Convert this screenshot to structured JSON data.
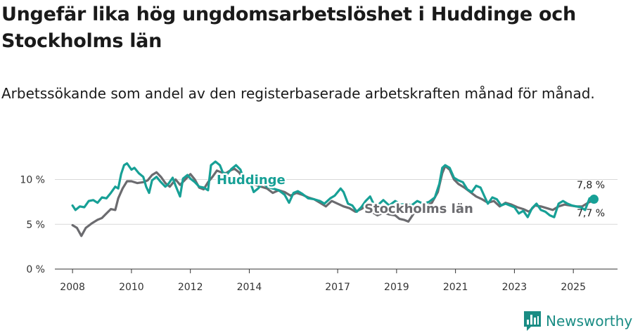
{
  "title": "Ungefär lika hög ungdomsarbetslöshet i Huddinge och Stockholms län",
  "subtitle": "Arbetssökande som andel av den registerbaserade arbetskraften månad för månad.",
  "brand": {
    "name": "Newsworthy",
    "color": "#1a8c84"
  },
  "colors": {
    "huddinge": "#17a096",
    "stockholm": "#6b6b6f",
    "grid": "#d9d9d9",
    "axis": "#333333"
  },
  "chart_data": {
    "type": "line",
    "title": "Ungefär lika hög ungdomsarbetslöshet i Huddinge och Stockholms län",
    "xlabel": "",
    "ylabel": "",
    "xlim": [
      2007.4,
      2026.5
    ],
    "ylim": [
      0,
      12
    ],
    "y_ticks": [
      0,
      5,
      10
    ],
    "y_tick_labels": [
      "0 %",
      "5 %",
      "10 %"
    ],
    "x_ticks": [
      2008,
      2010,
      2012,
      2014,
      2017,
      2019,
      2021,
      2023,
      2025
    ],
    "x_tick_labels": [
      "2008",
      "2010",
      "2012",
      "2014",
      "2017",
      "2019",
      "2021",
      "2023",
      "2025"
    ],
    "series": [
      {
        "name": "Huddinge",
        "color": "#17a096",
        "end_label": "7,8 %",
        "points": [
          [
            2008.0,
            7.1
          ],
          [
            2008.1,
            6.6
          ],
          [
            2008.25,
            7.0
          ],
          [
            2008.4,
            6.9
          ],
          [
            2008.55,
            7.6
          ],
          [
            2008.7,
            7.7
          ],
          [
            2008.85,
            7.4
          ],
          [
            2009.0,
            8.0
          ],
          [
            2009.15,
            7.9
          ],
          [
            2009.3,
            8.5
          ],
          [
            2009.45,
            9.2
          ],
          [
            2009.55,
            9.0
          ],
          [
            2009.65,
            10.6
          ],
          [
            2009.75,
            11.6
          ],
          [
            2009.85,
            11.8
          ],
          [
            2010.0,
            11.1
          ],
          [
            2010.1,
            11.3
          ],
          [
            2010.25,
            10.7
          ],
          [
            2010.4,
            10.3
          ],
          [
            2010.5,
            9.2
          ],
          [
            2010.6,
            8.5
          ],
          [
            2010.7,
            9.9
          ],
          [
            2010.85,
            10.3
          ],
          [
            2011.0,
            9.7
          ],
          [
            2011.15,
            9.2
          ],
          [
            2011.25,
            9.5
          ],
          [
            2011.4,
            10.2
          ],
          [
            2011.5,
            9.3
          ],
          [
            2011.65,
            8.1
          ],
          [
            2011.75,
            10.1
          ],
          [
            2011.9,
            10.5
          ],
          [
            2012.0,
            10.1
          ],
          [
            2012.15,
            9.7
          ],
          [
            2012.3,
            9.2
          ],
          [
            2012.45,
            9.1
          ],
          [
            2012.6,
            8.8
          ],
          [
            2012.7,
            11.6
          ],
          [
            2012.85,
            12.0
          ],
          [
            2013.0,
            11.6
          ],
          [
            2013.1,
            10.8
          ],
          [
            2013.25,
            10.6
          ],
          [
            2013.4,
            11.2
          ],
          [
            2013.55,
            11.6
          ],
          [
            2013.7,
            11.1
          ],
          [
            2013.85,
            9.6
          ],
          [
            2014.0,
            10.0
          ],
          [
            2014.15,
            8.6
          ],
          [
            2014.3,
            9.0
          ],
          [
            2014.45,
            9.6
          ],
          [
            2014.6,
            9.2
          ],
          [
            2014.8,
            9.0
          ],
          [
            2015.0,
            8.8
          ],
          [
            2015.2,
            8.3
          ],
          [
            2015.35,
            7.4
          ],
          [
            2015.5,
            8.5
          ],
          [
            2015.65,
            8.7
          ],
          [
            2015.8,
            8.4
          ],
          [
            2016.0,
            7.9
          ],
          [
            2016.2,
            7.8
          ],
          [
            2016.4,
            7.6
          ],
          [
            2016.55,
            7.3
          ],
          [
            2016.75,
            7.9
          ],
          [
            2016.9,
            8.2
          ],
          [
            2017.1,
            9.0
          ],
          [
            2017.2,
            8.6
          ],
          [
            2017.35,
            7.3
          ],
          [
            2017.5,
            7.1
          ],
          [
            2017.65,
            6.4
          ],
          [
            2017.8,
            6.9
          ],
          [
            2017.95,
            7.6
          ],
          [
            2018.1,
            8.1
          ],
          [
            2018.2,
            7.4
          ],
          [
            2018.35,
            7.1
          ],
          [
            2018.55,
            7.7
          ],
          [
            2018.75,
            7.1
          ],
          [
            2018.95,
            7.6
          ],
          [
            2019.15,
            7.2
          ],
          [
            2019.35,
            7.3
          ],
          [
            2019.5,
            7.1
          ],
          [
            2019.7,
            7.6
          ],
          [
            2019.9,
            7.3
          ],
          [
            2020.1,
            7.5
          ],
          [
            2020.3,
            8.0
          ],
          [
            2020.45,
            9.5
          ],
          [
            2020.55,
            11.3
          ],
          [
            2020.65,
            11.6
          ],
          [
            2020.8,
            11.3
          ],
          [
            2020.95,
            10.2
          ],
          [
            2021.1,
            9.9
          ],
          [
            2021.25,
            9.7
          ],
          [
            2021.4,
            8.9
          ],
          [
            2021.55,
            8.6
          ],
          [
            2021.7,
            9.3
          ],
          [
            2021.85,
            9.1
          ],
          [
            2022.0,
            8.0
          ],
          [
            2022.1,
            7.3
          ],
          [
            2022.25,
            8.0
          ],
          [
            2022.4,
            7.8
          ],
          [
            2022.55,
            7.1
          ],
          [
            2022.7,
            7.3
          ],
          [
            2022.85,
            7.1
          ],
          [
            2023.0,
            6.9
          ],
          [
            2023.15,
            6.2
          ],
          [
            2023.3,
            6.5
          ],
          [
            2023.45,
            5.8
          ],
          [
            2023.6,
            6.8
          ],
          [
            2023.75,
            7.3
          ],
          [
            2023.9,
            6.6
          ],
          [
            2024.05,
            6.4
          ],
          [
            2024.2,
            6.0
          ],
          [
            2024.35,
            5.8
          ],
          [
            2024.5,
            7.3
          ],
          [
            2024.65,
            7.6
          ],
          [
            2024.8,
            7.3
          ],
          [
            2024.95,
            7.1
          ],
          [
            2025.1,
            7.0
          ],
          [
            2025.25,
            6.9
          ],
          [
            2025.4,
            6.6
          ],
          [
            2025.55,
            7.9
          ],
          [
            2025.7,
            7.8
          ]
        ]
      },
      {
        "name": "Stockholms län",
        "color": "#6b6b6f",
        "end_label": "7,7 %",
        "points": [
          [
            2008.0,
            4.9
          ],
          [
            2008.15,
            4.6
          ],
          [
            2008.3,
            3.7
          ],
          [
            2008.45,
            4.6
          ],
          [
            2008.65,
            5.1
          ],
          [
            2008.85,
            5.5
          ],
          [
            2009.0,
            5.7
          ],
          [
            2009.15,
            6.2
          ],
          [
            2009.3,
            6.7
          ],
          [
            2009.45,
            6.6
          ],
          [
            2009.55,
            7.9
          ],
          [
            2009.7,
            9.0
          ],
          [
            2009.85,
            9.8
          ],
          [
            2010.0,
            9.8
          ],
          [
            2010.2,
            9.6
          ],
          [
            2010.4,
            9.7
          ],
          [
            2010.55,
            9.9
          ],
          [
            2010.7,
            10.5
          ],
          [
            2010.85,
            10.8
          ],
          [
            2011.0,
            10.3
          ],
          [
            2011.15,
            9.6
          ],
          [
            2011.3,
            9.2
          ],
          [
            2011.5,
            10.0
          ],
          [
            2011.65,
            9.4
          ],
          [
            2011.8,
            9.9
          ],
          [
            2012.0,
            10.6
          ],
          [
            2012.15,
            10.0
          ],
          [
            2012.3,
            9.1
          ],
          [
            2012.45,
            8.9
          ],
          [
            2012.6,
            9.7
          ],
          [
            2012.75,
            10.3
          ],
          [
            2012.9,
            11.0
          ],
          [
            2013.05,
            10.8
          ],
          [
            2013.2,
            10.7
          ],
          [
            2013.35,
            11.0
          ],
          [
            2013.5,
            11.2
          ],
          [
            2013.65,
            10.8
          ],
          [
            2013.8,
            10.1
          ],
          [
            2014.0,
            9.7
          ],
          [
            2014.2,
            9.4
          ],
          [
            2014.4,
            9.2
          ],
          [
            2014.6,
            9.0
          ],
          [
            2014.8,
            8.5
          ],
          [
            2015.0,
            8.8
          ],
          [
            2015.2,
            8.6
          ],
          [
            2015.4,
            8.2
          ],
          [
            2015.6,
            8.5
          ],
          [
            2015.8,
            8.3
          ],
          [
            2016.0,
            8.0
          ],
          [
            2016.2,
            7.8
          ],
          [
            2016.4,
            7.4
          ],
          [
            2016.6,
            7.0
          ],
          [
            2016.8,
            7.6
          ],
          [
            2017.0,
            7.3
          ],
          [
            2017.2,
            7.0
          ],
          [
            2017.4,
            6.8
          ],
          [
            2017.6,
            6.4
          ],
          [
            2017.8,
            6.7
          ],
          [
            2017.95,
            7.0
          ],
          [
            2018.15,
            6.4
          ],
          [
            2018.35,
            6.0
          ],
          [
            2018.55,
            6.3
          ],
          [
            2018.75,
            6.1
          ],
          [
            2018.95,
            6.0
          ],
          [
            2019.1,
            5.6
          ],
          [
            2019.25,
            5.5
          ],
          [
            2019.4,
            5.3
          ],
          [
            2019.6,
            6.3
          ],
          [
            2019.8,
            6.9
          ],
          [
            2020.0,
            7.0
          ],
          [
            2020.2,
            7.4
          ],
          [
            2020.4,
            8.6
          ],
          [
            2020.55,
            10.7
          ],
          [
            2020.65,
            11.5
          ],
          [
            2020.8,
            11.1
          ],
          [
            2020.95,
            10.0
          ],
          [
            2021.1,
            9.5
          ],
          [
            2021.3,
            9.1
          ],
          [
            2021.5,
            8.6
          ],
          [
            2021.7,
            8.1
          ],
          [
            2021.9,
            7.8
          ],
          [
            2022.1,
            7.4
          ],
          [
            2022.3,
            7.6
          ],
          [
            2022.5,
            7.0
          ],
          [
            2022.7,
            7.4
          ],
          [
            2022.9,
            7.2
          ],
          [
            2023.1,
            6.9
          ],
          [
            2023.3,
            6.7
          ],
          [
            2023.5,
            6.4
          ],
          [
            2023.7,
            7.1
          ],
          [
            2023.9,
            7.0
          ],
          [
            2024.1,
            6.8
          ],
          [
            2024.3,
            6.6
          ],
          [
            2024.5,
            7.0
          ],
          [
            2024.7,
            7.2
          ],
          [
            2024.9,
            7.1
          ],
          [
            2025.1,
            7.0
          ],
          [
            2025.3,
            7.0
          ],
          [
            2025.5,
            7.4
          ],
          [
            2025.7,
            7.7
          ]
        ]
      }
    ]
  }
}
